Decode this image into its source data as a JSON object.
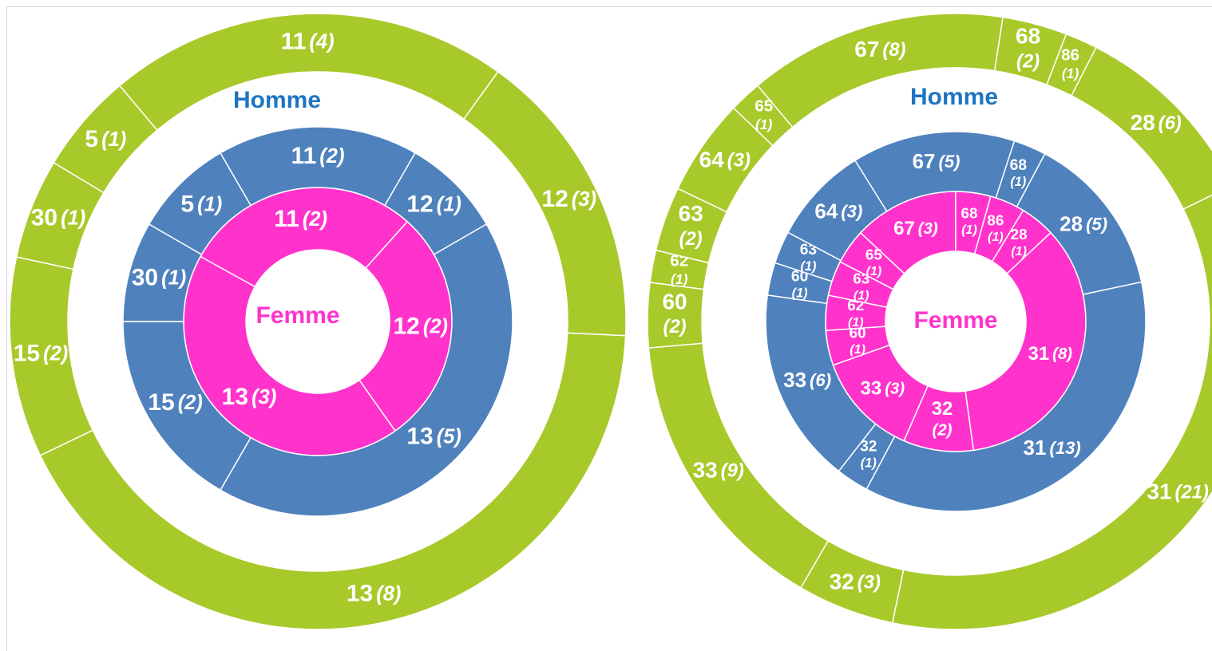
{
  "chart_data": [
    {
      "type": "sunburst",
      "outer_title": "Homme",
      "center_title": "Femme",
      "rings": [
        {
          "color": "#ff33cc",
          "categories": [
            "11",
            "12",
            "13"
          ],
          "values": [
            2,
            2,
            3
          ],
          "value_labels": [
            "(2)",
            "(2)",
            "(3)"
          ]
        },
        {
          "color": "#4f81bd",
          "categories": [
            "11",
            "12",
            "13",
            "15",
            "30",
            "5"
          ],
          "values": [
            2,
            1,
            5,
            2,
            1,
            1
          ],
          "value_labels": [
            "(2)",
            "(1)",
            "(5)",
            "(2)",
            "(1)",
            "(1)"
          ]
        },
        {
          "color": "#a8c92a",
          "categories": [
            "11",
            "12",
            "13",
            "15",
            "30",
            "5"
          ],
          "values": [
            4,
            3,
            8,
            2,
            1,
            1
          ],
          "value_labels": [
            "(4)",
            "(3)",
            "(8)",
            "(2)",
            "(1)",
            "(1)"
          ]
        }
      ]
    },
    {
      "type": "sunburst",
      "outer_title": "Homme",
      "center_title": "Femme",
      "rings": [
        {
          "color": "#ff33cc",
          "categories": [
            "67",
            "68",
            "86",
            "28",
            "31",
            "32",
            "33",
            "60",
            "62",
            "63",
            "65"
          ],
          "values": [
            3,
            1,
            1,
            1,
            8,
            2,
            3,
            1,
            1,
            1,
            1
          ],
          "value_labels": [
            "(3)",
            "(1)",
            "(1)",
            "(1)",
            "(8)",
            "(2)",
            "(3)",
            "(1)",
            "(1)",
            "(1)",
            "(1)"
          ]
        },
        {
          "color": "#4f81bd",
          "categories": [
            "67",
            "68",
            "28",
            "31",
            "32",
            "33",
            "60",
            "63",
            "64"
          ],
          "values": [
            5,
            1,
            5,
            13,
            1,
            6,
            1,
            1,
            3
          ],
          "value_labels": [
            "(5)",
            "(1)",
            "(5)",
            "(13)",
            "(1)",
            "(6)",
            "(1)",
            "(1)",
            "(3)"
          ]
        },
        {
          "color": "#a8c92a",
          "categories": [
            "67",
            "68",
            "86",
            "28",
            "31",
            "32",
            "33",
            "60",
            "62",
            "63",
            "64",
            "65"
          ],
          "values": [
            8,
            2,
            1,
            6,
            21,
            3,
            9,
            2,
            1,
            2,
            3,
            1
          ],
          "value_labels": [
            "(8)",
            "(2)",
            "(1)",
            "(6)",
            "(21)",
            "(3)",
            "(9)",
            "(2)",
            "(1)",
            "(2)",
            "(3)",
            "(1)"
          ]
        }
      ]
    }
  ]
}
